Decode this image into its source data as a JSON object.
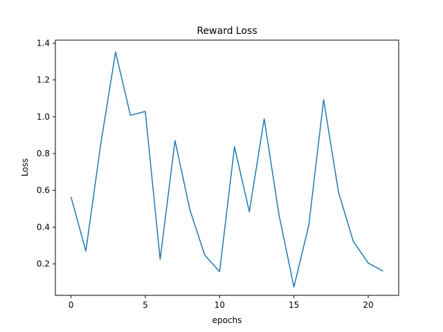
{
  "chart_data": {
    "type": "line",
    "title": "Reward Loss",
    "xlabel": "epochs",
    "ylabel": "Loss",
    "xlim": [
      -1.05,
      22.05
    ],
    "ylim": [
      0.0295,
      1.4165
    ],
    "xticks": [
      0,
      5,
      10,
      15,
      20
    ],
    "yticks": [
      0.2,
      0.4,
      0.6,
      0.8,
      1.0,
      1.2,
      1.4
    ],
    "ytick_labels": [
      "0.2",
      "0.4",
      "0.6",
      "0.8",
      "1.0",
      "1.2",
      "1.4"
    ],
    "grid": false,
    "series": [
      {
        "color": "#1f77b4",
        "x": [
          0,
          1,
          2,
          3,
          4,
          5,
          6,
          7,
          8,
          9,
          10,
          11,
          12,
          13,
          14,
          15,
          16,
          17,
          18,
          19,
          20,
          21
        ],
        "y": [
          0.565,
          0.27,
          0.85,
          1.352,
          1.008,
          1.029,
          0.225,
          0.87,
          0.495,
          0.248,
          0.158,
          0.837,
          0.484,
          0.989,
          0.465,
          0.075,
          0.41,
          1.093,
          0.59,
          0.322,
          0.205,
          0.161
        ]
      }
    ]
  }
}
